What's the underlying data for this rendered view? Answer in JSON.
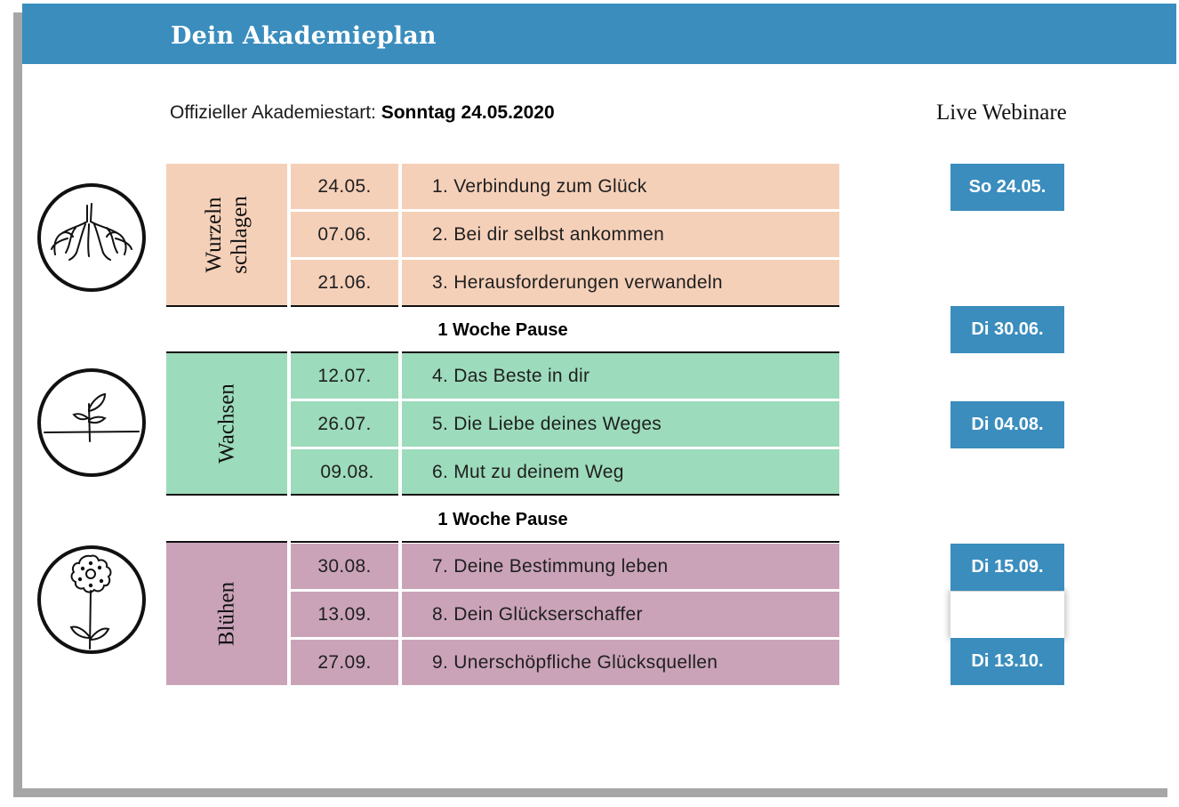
{
  "title": "Dein Akademieplan",
  "start": {
    "label": "Offizieller Akademiestart: ",
    "value": "Sonntag 24.05.2020"
  },
  "webinars_heading": "Live Webinare",
  "pause_label": "1 Woche Pause",
  "phases": [
    {
      "name_line1": "Wurzeln",
      "name_line2": "schlagen",
      "icon": "roots-icon",
      "color": "#f5d0b9",
      "lessons": [
        {
          "date": "24.05.",
          "title": "1. Verbindung zum Glück"
        },
        {
          "date": "07.06.",
          "title": "2. Bei dir selbst ankommen"
        },
        {
          "date": "21.06.",
          "title": "3. Herausforderungen verwandeln"
        }
      ]
    },
    {
      "name_line1": "Wachsen",
      "icon": "sprout-icon",
      "color": "#9cdbbb",
      "lessons": [
        {
          "date": "12.07.",
          "title": "4. Das Beste in dir"
        },
        {
          "date": "26.07.",
          "title": "5. Die Liebe deines Weges"
        },
        {
          "date": "09.08.",
          "title": "6. Mut zu deinem Weg"
        }
      ]
    },
    {
      "name_line1": "Blühen",
      "icon": "flower-icon",
      "color": "#caa3b9",
      "lessons": [
        {
          "date": "30.08.",
          "title": "7. Deine Bestimmung leben"
        },
        {
          "date": "13.09.",
          "title": "8. Dein Glückserschaffer"
        },
        {
          "date": "27.09.",
          "title": "9. Unerschöpfliche Glücksquellen"
        }
      ]
    }
  ],
  "webinars": [
    "So 24.05.",
    "Di 30.06.",
    "Di 04.08.",
    "Di 15.09.",
    "Di 13.10."
  ],
  "colors": {
    "accent": "#3a8dbd",
    "peach": "#f5d0b9",
    "green": "#9cdbbb",
    "mauve": "#caa3b9"
  }
}
